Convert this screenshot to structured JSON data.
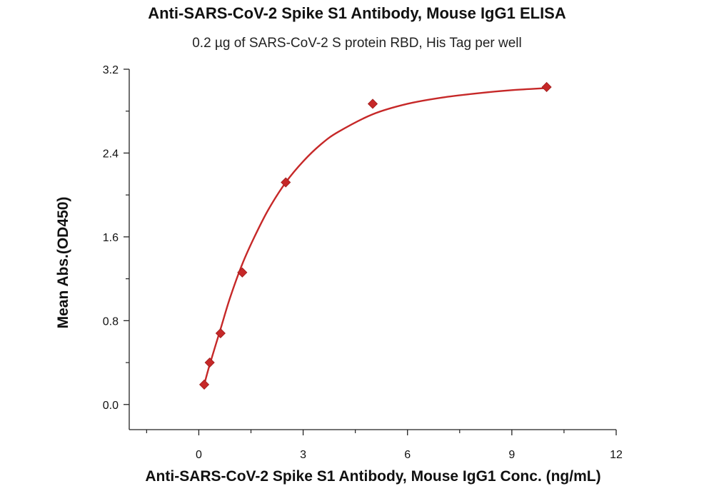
{
  "chart_data": {
    "type": "scatter",
    "title": "Anti-SARS-CoV-2 Spike S1 Antibody, Mouse IgG1 ELISA",
    "subtitle": "0.2 µg of SARS-CoV-2 S protein RBD, His Tag per well",
    "xlabel": "Anti-SARS-CoV-2 Spike S1 Antibody, Mouse IgG1 Conc. (ng/mL)",
    "ylabel": "Mean Abs.(OD450)",
    "xlim": [
      -2,
      12
    ],
    "ylim": [
      -0.24,
      3.2
    ],
    "x_ticks": [
      0,
      3,
      6,
      9,
      12
    ],
    "y_ticks": [
      0.0,
      0.8,
      1.6,
      2.4,
      3.2
    ],
    "x_tick_labels": [
      "0",
      "3",
      "6",
      "9",
      "12"
    ],
    "y_tick_labels": [
      "0.0",
      "0.8",
      "1.6",
      "2.4",
      "3.2"
    ],
    "grid": false,
    "legend": "none",
    "series": [
      {
        "marker": "diamond",
        "color": "#c62828",
        "x": [
          0.156,
          0.313,
          0.625,
          1.25,
          2.5,
          5.0,
          10.0
        ],
        "y": [
          0.19,
          0.4,
          0.68,
          1.26,
          2.12,
          2.87,
          3.03
        ]
      }
    ],
    "fit_curve": {
      "color": "#c62828",
      "x": [
        0.156,
        0.313,
        0.625,
        0.9,
        1.25,
        1.6,
        2.0,
        2.5,
        3.0,
        3.5,
        4.0,
        5.0,
        6.0,
        7.0,
        8.0,
        9.0,
        10.0
      ],
      "y": [
        0.19,
        0.38,
        0.72,
        1.02,
        1.34,
        1.6,
        1.86,
        2.12,
        2.32,
        2.48,
        2.6,
        2.77,
        2.87,
        2.93,
        2.97,
        3.0,
        3.02
      ]
    }
  }
}
